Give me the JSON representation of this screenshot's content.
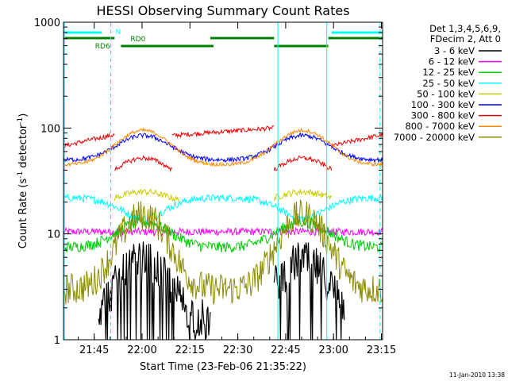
{
  "chart_data": {
    "type": "line",
    "title": "HESSI Observing Summary Count Rates",
    "xlabel": "Start Time (23-Feb-06 21:35:22)",
    "ylabel_main": "Count Rate (s",
    "ylabel_sup1": "-1",
    "ylabel_mid": " detector",
    "ylabel_sup2": "-1",
    "ylabel_end": ")",
    "yscale": "log",
    "ylim": [
      1,
      1000
    ],
    "xlim_minutes": [
      0,
      100
    ],
    "x_ticks": [
      {
        "label": "21:45",
        "t": 9.63
      },
      {
        "label": "22:00",
        "t": 24.63
      },
      {
        "label": "22:15",
        "t": 39.63
      },
      {
        "label": "22:30",
        "t": 54.63
      },
      {
        "label": "22:45",
        "t": 69.63
      },
      {
        "label": "23:00",
        "t": 84.63
      },
      {
        "label": "23:15",
        "t": 99.63
      }
    ],
    "y_ticks": [
      {
        "label": "1",
        "v": 1
      },
      {
        "label": "10",
        "v": 10
      },
      {
        "label": "100",
        "v": 100
      },
      {
        "label": "1000",
        "v": 1000
      }
    ],
    "legend_header": [
      "Det 1,3,4,5,6,9,",
      "FDecim 2, Att 0"
    ],
    "legend_placement": "right",
    "series": [
      {
        "name": "3 - 6 keV",
        "color": "#000000",
        "kind": "bins",
        "segments": [
          [
            11,
            46
          ],
          [
            66,
            88
          ]
        ],
        "base": 1.5,
        "peak": 5.5,
        "noise": 0.45
      },
      {
        "name": "6 - 12 keV",
        "color": "#ff00ff",
        "kind": "flat",
        "segments": [
          [
            0,
            100
          ]
        ],
        "base": 10.5,
        "noise": 0.08
      },
      {
        "name": "12 - 25 keV",
        "color": "#00cc00",
        "kind": "hump",
        "segments": [
          [
            0,
            100
          ]
        ],
        "base": 7.5,
        "peak": 13,
        "noise": 0.12
      },
      {
        "name": "25 - 50 keV",
        "color": "#00ffff",
        "kind": "hump",
        "segments": [
          [
            0,
            100
          ]
        ],
        "base": 22,
        "peak": 14,
        "noise": 0.08
      },
      {
        "name": "50 - 100 keV",
        "color": "#cccc00",
        "kind": "hump",
        "segments": [
          [
            16,
            36
          ],
          [
            66,
            84
          ]
        ],
        "base": 19,
        "peak": 25,
        "noise": 0.07
      },
      {
        "name": "100 - 300 keV",
        "color": "#0000ff",
        "kind": "hump",
        "segments": [
          [
            0,
            100
          ]
        ],
        "base": 50,
        "peak": 85,
        "noise": 0.05
      },
      {
        "name": "300 - 800 keV",
        "color": "#ee0000",
        "kind": "orbit",
        "segments": [
          [
            0,
            16
          ],
          [
            34,
            66
          ],
          [
            84,
            100
          ]
        ],
        "base": 75,
        "peak": 52,
        "noise": 0.05
      },
      {
        "name": "800 - 7000 keV",
        "color": "#ff8800",
        "kind": "hump",
        "segments": [
          [
            0,
            100
          ]
        ],
        "base": 45,
        "peak": 95,
        "noise": 0.04
      },
      {
        "name": "7000 - 20000 keV",
        "color": "#8a8a00",
        "kind": "steps",
        "segments": [
          [
            0,
            100
          ]
        ],
        "base": 3,
        "peak": 15,
        "noise": 0.35
      }
    ],
    "annotations": {
      "flags": [
        {
          "label": "N",
          "color": "#00ffff"
        },
        {
          "label": "RD0",
          "color": "#008000"
        },
        {
          "label": "RD6",
          "color": "#008000"
        }
      ],
      "vertical_lines_minutes": [
        {
          "t": 0.3,
          "style": "solid"
        },
        {
          "t": 14.8,
          "style": "dashed"
        },
        {
          "t": 67.2,
          "style": "solid"
        },
        {
          "t": 82.5,
          "style": "solid"
        },
        {
          "t": 99.2,
          "style": "dashed"
        }
      ]
    },
    "grid": false
  },
  "footer": {
    "date_stamp": "11-Jan-2010 13:38"
  }
}
